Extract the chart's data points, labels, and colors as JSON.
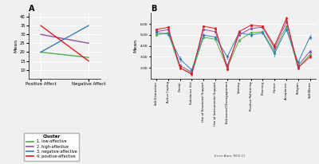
{
  "panel_a": {
    "title": "A",
    "xlabel_ticks": [
      "Positive Affect",
      "Negative Affect"
    ],
    "ylabel": "Mean",
    "ylim": [
      5,
      42
    ],
    "yticks": [
      10,
      15,
      20,
      25,
      30,
      35,
      40
    ],
    "clusters": {
      "1. low-affective": {
        "color": "#4daf4a",
        "values": [
          20,
          17
        ]
      },
      "2. high-affective": {
        "color": "#984ea3",
        "values": [
          30,
          25
        ]
      },
      "3. negative-affective": {
        "color": "#377eb8",
        "values": [
          20,
          35
        ]
      },
      "4. positive-affective": {
        "color": "#e41a1c",
        "values": [
          35,
          15
        ]
      }
    }
  },
  "panel_b": {
    "title": "B",
    "ylabel": "Mean",
    "ylim": [
      1.0,
      7.0
    ],
    "yticks": [
      2.0,
      3.0,
      4.0,
      5.0,
      6.0
    ],
    "xlabel_note": "Error Bars: 95% CI",
    "categories": [
      "Self-Distraction",
      "Active Coping",
      "Denial",
      "Substance Use",
      "Use of Emotional Support",
      "Use of Instrumental Support",
      "Behavioral Disengagement",
      "Venting",
      "Positive Reframing",
      "Planning",
      "Humor",
      "Acceptance",
      "Religion",
      "Self-Blame"
    ],
    "clusters": {
      "1. low-affective": {
        "color": "#4daf4a",
        "values": [
          5.0,
          5.2,
          2.0,
          1.5,
          4.8,
          4.6,
          2.0,
          4.5,
          5.2,
          5.3,
          3.5,
          5.8,
          2.0,
          3.2
        ],
        "errors": [
          0.1,
          0.1,
          0.1,
          0.1,
          0.1,
          0.1,
          0.1,
          0.1,
          0.1,
          0.1,
          0.2,
          0.1,
          0.1,
          0.1
        ]
      },
      "2. high-affective": {
        "color": "#984ea3",
        "values": [
          5.3,
          5.5,
          2.2,
          1.6,
          5.5,
          5.3,
          2.2,
          5.0,
          5.6,
          5.7,
          3.8,
          6.2,
          2.2,
          3.5
        ],
        "errors": [
          0.1,
          0.1,
          0.1,
          0.1,
          0.1,
          0.1,
          0.1,
          0.1,
          0.1,
          0.1,
          0.2,
          0.1,
          0.1,
          0.1
        ]
      },
      "3. negative-affective": {
        "color": "#377eb8",
        "values": [
          5.2,
          5.1,
          2.8,
          1.8,
          5.0,
          4.8,
          3.0,
          5.2,
          5.0,
          5.2,
          3.3,
          5.5,
          2.5,
          4.8
        ],
        "errors": [
          0.15,
          0.15,
          0.2,
          0.15,
          0.15,
          0.15,
          0.2,
          0.15,
          0.15,
          0.15,
          0.25,
          0.15,
          0.2,
          0.2
        ]
      },
      "4. positive-affective": {
        "color": "#e41a1c",
        "values": [
          5.5,
          5.7,
          2.0,
          1.4,
          5.8,
          5.6,
          1.9,
          5.3,
          5.9,
          5.8,
          4.0,
          6.5,
          2.0,
          3.0
        ],
        "errors": [
          0.1,
          0.1,
          0.1,
          0.1,
          0.1,
          0.1,
          0.1,
          0.1,
          0.1,
          0.1,
          0.2,
          0.15,
          0.1,
          0.1
        ]
      }
    }
  },
  "legend": {
    "title": "Cluster",
    "entries": [
      "1. low-affective",
      "2. high-affective",
      "3. negative-affective",
      "4. positive-affective"
    ],
    "colors": [
      "#4daf4a",
      "#984ea3",
      "#377eb8",
      "#e41a1c"
    ]
  },
  "bg_color": "#f0f0f0"
}
